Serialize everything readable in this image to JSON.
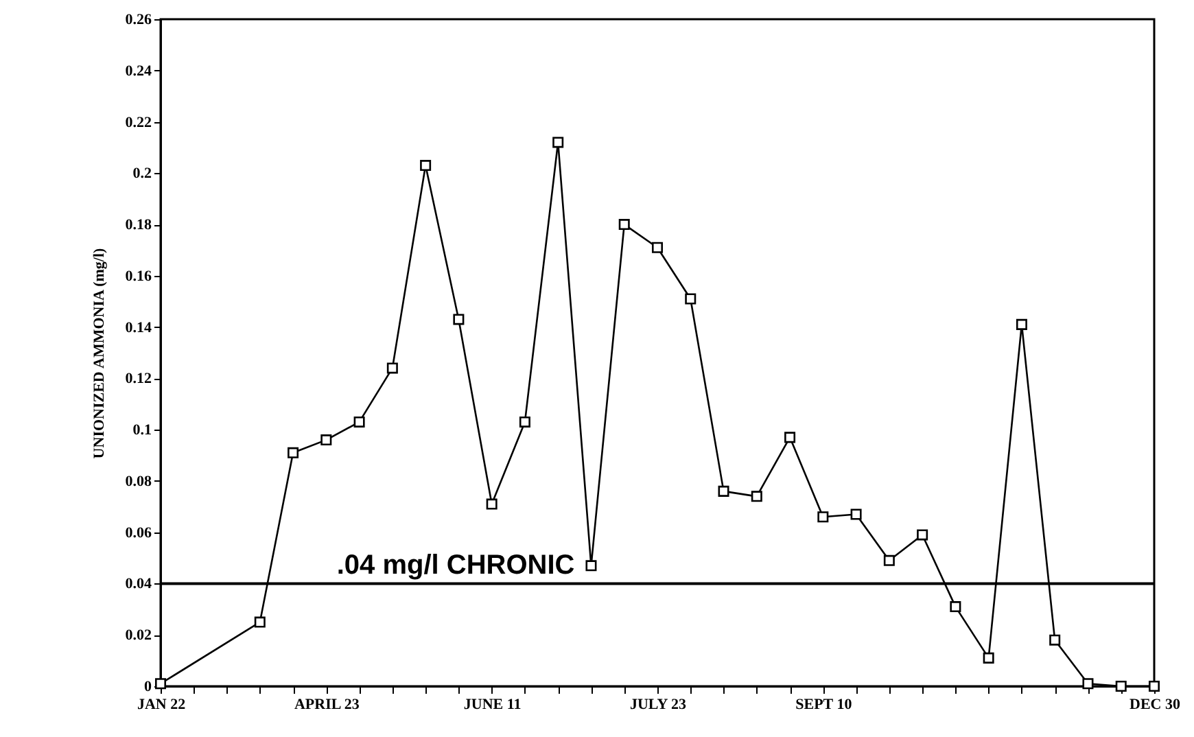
{
  "chart_data": {
    "type": "line",
    "ylabel": "UNIONIZED AMMONIA (mg/l)",
    "categories": [
      "JAN 22",
      null,
      null,
      null,
      null,
      "APRIL 23",
      null,
      null,
      null,
      null,
      "JUNE 11",
      null,
      null,
      null,
      null,
      "JULY 23",
      null,
      null,
      null,
      null,
      "SEPT 10",
      null,
      null,
      null,
      null,
      null,
      null,
      null,
      null,
      null,
      "DEC 30"
    ],
    "series": [
      {
        "color": "#000000",
        "values": [
          0.001,
          null,
          null,
          0.025,
          0.091,
          0.096,
          0.103,
          0.124,
          0.203,
          0.143,
          0.071,
          0.103,
          0.212,
          0.047,
          0.18,
          0.171,
          0.151,
          0.076,
          0.074,
          0.097,
          0.066,
          0.067,
          0.049,
          0.059,
          0.031,
          0.011,
          0.141,
          0.018,
          0.001,
          0.0,
          0.0
        ]
      }
    ],
    "ylim": [
      0,
      0.26
    ],
    "yticks": [
      0,
      0.02,
      0.04,
      0.06,
      0.08,
      0.1,
      0.12,
      0.14,
      0.16,
      0.18,
      0.2,
      0.22,
      0.24,
      0.26
    ],
    "ref_lines": [
      {
        "axis": "y",
        "value": 0.04,
        "label": ".04 mg/l CHRONIC",
        "color": "#000000"
      }
    ],
    "marker": "square",
    "grid": false
  }
}
